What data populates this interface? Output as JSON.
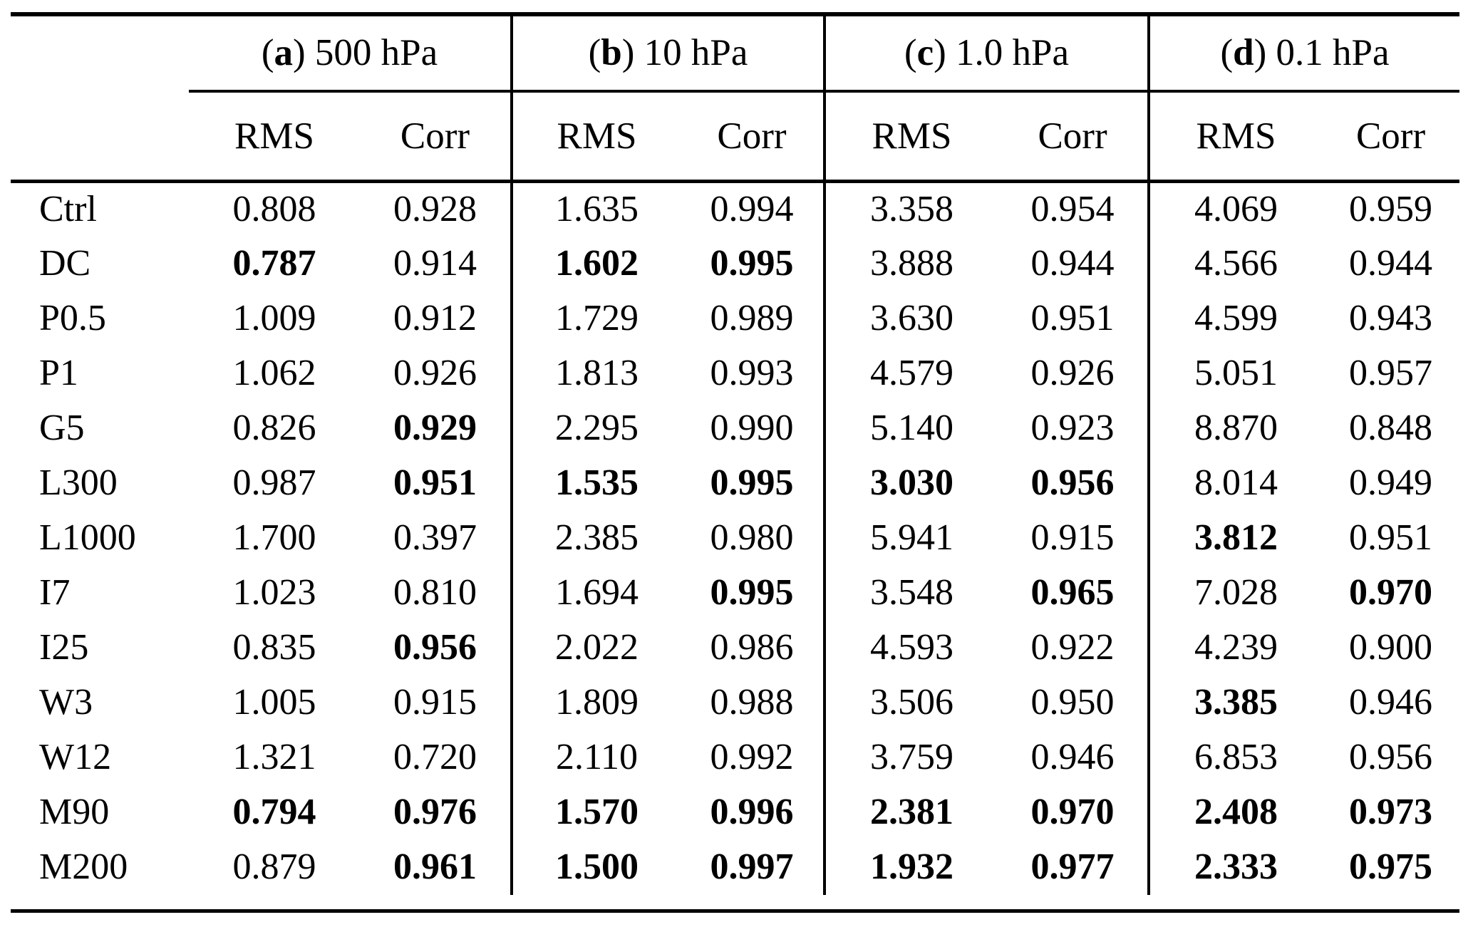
{
  "style": {
    "ink_color": "#000000",
    "paper_color": "#ffffff"
  },
  "table": {
    "groups": [
      {
        "open": "(",
        "letter": "a",
        "rest": ") 500 hPa"
      },
      {
        "open": "(",
        "letter": "b",
        "rest": ") 10 hPa"
      },
      {
        "open": "(",
        "letter": "c",
        "rest": ") 1.0 hPa"
      },
      {
        "open": "(",
        "letter": "d",
        "rest": ") 0.1 hPa"
      }
    ],
    "subheaders": [
      "RMS",
      "Corr"
    ],
    "rows": [
      {
        "label": "Ctrl",
        "values": [
          "0.808",
          "0.928",
          "1.635",
          "0.994",
          "3.358",
          "0.954",
          "4.069",
          "0.959"
        ],
        "bold": [
          false,
          false,
          false,
          false,
          false,
          false,
          false,
          false
        ]
      },
      {
        "label": "DC",
        "values": [
          "0.787",
          "0.914",
          "1.602",
          "0.995",
          "3.888",
          "0.944",
          "4.566",
          "0.944"
        ],
        "bold": [
          true,
          false,
          true,
          true,
          false,
          false,
          false,
          false
        ]
      },
      {
        "label": "P0.5",
        "values": [
          "1.009",
          "0.912",
          "1.729",
          "0.989",
          "3.630",
          "0.951",
          "4.599",
          "0.943"
        ],
        "bold": [
          false,
          false,
          false,
          false,
          false,
          false,
          false,
          false
        ]
      },
      {
        "label": "P1",
        "values": [
          "1.062",
          "0.926",
          "1.813",
          "0.993",
          "4.579",
          "0.926",
          "5.051",
          "0.957"
        ],
        "bold": [
          false,
          false,
          false,
          false,
          false,
          false,
          false,
          false
        ]
      },
      {
        "label": "G5",
        "values": [
          "0.826",
          "0.929",
          "2.295",
          "0.990",
          "5.140",
          "0.923",
          "8.870",
          "0.848"
        ],
        "bold": [
          false,
          true,
          false,
          false,
          false,
          false,
          false,
          false
        ]
      },
      {
        "label": "L300",
        "values": [
          "0.987",
          "0.951",
          "1.535",
          "0.995",
          "3.030",
          "0.956",
          "8.014",
          "0.949"
        ],
        "bold": [
          false,
          true,
          true,
          true,
          true,
          true,
          false,
          false
        ]
      },
      {
        "label": "L1000",
        "values": [
          "1.700",
          "0.397",
          "2.385",
          "0.980",
          "5.941",
          "0.915",
          "3.812",
          "0.951"
        ],
        "bold": [
          false,
          false,
          false,
          false,
          false,
          false,
          true,
          false
        ]
      },
      {
        "label": "I7",
        "values": [
          "1.023",
          "0.810",
          "1.694",
          "0.995",
          "3.548",
          "0.965",
          "7.028",
          "0.970"
        ],
        "bold": [
          false,
          false,
          false,
          true,
          false,
          true,
          false,
          true
        ]
      },
      {
        "label": "I25",
        "values": [
          "0.835",
          "0.956",
          "2.022",
          "0.986",
          "4.593",
          "0.922",
          "4.239",
          "0.900"
        ],
        "bold": [
          false,
          true,
          false,
          false,
          false,
          false,
          false,
          false
        ]
      },
      {
        "label": "W3",
        "values": [
          "1.005",
          "0.915",
          "1.809",
          "0.988",
          "3.506",
          "0.950",
          "3.385",
          "0.946"
        ],
        "bold": [
          false,
          false,
          false,
          false,
          false,
          false,
          true,
          false
        ]
      },
      {
        "label": "W12",
        "values": [
          "1.321",
          "0.720",
          "2.110",
          "0.992",
          "3.759",
          "0.946",
          "6.853",
          "0.956"
        ],
        "bold": [
          false,
          false,
          false,
          false,
          false,
          false,
          false,
          false
        ]
      },
      {
        "label": "M90",
        "values": [
          "0.794",
          "0.976",
          "1.570",
          "0.996",
          "2.381",
          "0.970",
          "2.408",
          "0.973"
        ],
        "bold": [
          true,
          true,
          true,
          true,
          true,
          true,
          true,
          true
        ]
      },
      {
        "label": "M200",
        "values": [
          "0.879",
          "0.961",
          "1.500",
          "0.997",
          "1.932",
          "0.977",
          "2.333",
          "0.975"
        ],
        "bold": [
          false,
          true,
          true,
          true,
          true,
          true,
          true,
          true
        ]
      }
    ]
  }
}
